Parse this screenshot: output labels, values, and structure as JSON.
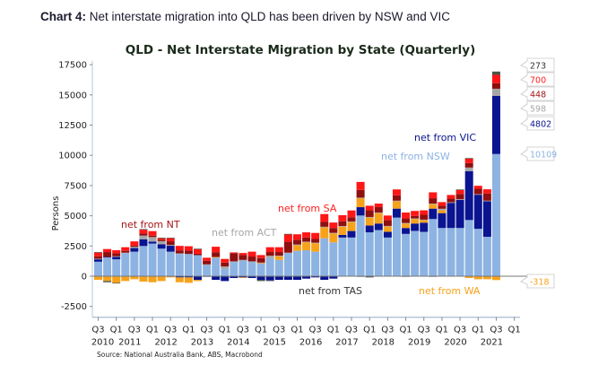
{
  "heading": {
    "prefix": "Chart 4:",
    "text": " Net interstate migration into QLD has been driven by NSW and VIC"
  },
  "source": "Source: National Australia Bank, ABS, Macrobond",
  "chart_data": {
    "type": "bar",
    "stacked": true,
    "title": "QLD - Net Interstate Migration by State (Quarterly)",
    "ylabel": "Persons",
    "xlabel": "",
    "ylim": [
      -2500,
      17500
    ],
    "yticks": [
      -2500,
      0,
      2500,
      5000,
      7500,
      10000,
      12500,
      15000,
      17500
    ],
    "grid": false,
    "categories": [
      "2010Q3",
      "2010Q4",
      "2011Q1",
      "2011Q2",
      "2011Q3",
      "2011Q4",
      "2012Q1",
      "2012Q2",
      "2012Q3",
      "2012Q4",
      "2013Q1",
      "2013Q2",
      "2013Q3",
      "2013Q4",
      "2014Q1",
      "2014Q2",
      "2014Q3",
      "2014Q4",
      "2015Q1",
      "2015Q2",
      "2015Q3",
      "2015Q4",
      "2016Q1",
      "2016Q2",
      "2016Q3",
      "2016Q4",
      "2017Q1",
      "2017Q2",
      "2017Q3",
      "2017Q4",
      "2018Q1",
      "2018Q2",
      "2018Q3",
      "2018Q4",
      "2019Q1",
      "2019Q2",
      "2019Q3",
      "2019Q4",
      "2020Q1",
      "2020Q2",
      "2020Q3",
      "2020Q4",
      "2021Q1",
      "2021Q2",
      "2021Q3"
    ],
    "xtick_labels": [
      "Q3",
      "Q1",
      "Q3",
      "Q1",
      "Q3",
      "Q1",
      "Q3",
      "Q1",
      "Q3",
      "Q1",
      "Q3",
      "Q1",
      "Q3",
      "Q1",
      "Q3",
      "Q1",
      "Q3",
      "Q1",
      "Q3",
      "Q1",
      "Q3",
      "Q1",
      "Q3",
      "Q1"
    ],
    "year_labels": [
      "2010",
      "2011",
      "2012",
      "2013",
      "2014",
      "2015",
      "2016",
      "2017",
      "2018",
      "2019",
      "2020",
      "2021"
    ],
    "series": [
      {
        "name": "net from NSW",
        "color": "#8db3e2",
        "values": [
          1200,
          1550,
          1400,
          1900,
          2030,
          2500,
          2700,
          2280,
          2030,
          1840,
          1840,
          1740,
          930,
          1540,
          610,
          1180,
          1300,
          1180,
          1050,
          1500,
          1350,
          1900,
          2100,
          2150,
          2030,
          3140,
          2800,
          3200,
          3200,
          5020,
          3630,
          3820,
          3200,
          4850,
          3500,
          3750,
          3670,
          4730,
          3990,
          3990,
          3990,
          4650,
          3920,
          3260,
          10109
        ]
      },
      {
        "name": "net from VIC",
        "color": "#0a1490",
        "values": [
          200,
          50,
          200,
          0,
          300,
          560,
          170,
          370,
          490,
          -100,
          -100,
          -300,
          -50,
          -300,
          -400,
          -150,
          -100,
          -150,
          -300,
          -350,
          -300,
          -300,
          -300,
          -200,
          -100,
          -300,
          -200,
          220,
          540,
          690,
          560,
          540,
          470,
          740,
          490,
          610,
          760,
          860,
          1230,
          2080,
          2330,
          4040,
          2820,
          2940,
          4802
        ]
      },
      {
        "name": "net from WA",
        "color": "#f7a21b",
        "values": [
          -300,
          -400,
          -550,
          -400,
          -250,
          -450,
          -500,
          -400,
          -100,
          -400,
          -450,
          -100,
          0,
          50,
          0,
          0,
          -50,
          0,
          30,
          0,
          300,
          0,
          470,
          660,
          700,
          900,
          740,
          680,
          740,
          740,
          660,
          860,
          440,
          610,
          370,
          370,
          200,
          370,
          240,
          0,
          0,
          -150,
          -250,
          -250,
          -318
        ]
      },
      {
        "name": "net from ACT",
        "color": "#a6a6a6",
        "values": [
          50,
          0,
          50,
          50,
          100,
          300,
          370,
          250,
          70,
          50,
          0,
          0,
          50,
          0,
          200,
          50,
          50,
          50,
          50,
          200,
          50,
          50,
          50,
          50,
          50,
          50,
          50,
          50,
          50,
          50,
          50,
          50,
          50,
          50,
          50,
          50,
          50,
          50,
          120,
          50,
          50,
          300,
          50,
          50,
          598
        ]
      },
      {
        "name": "net from SA",
        "color": "#8e0f0f",
        "values": [
          200,
          400,
          250,
          150,
          100,
          170,
          120,
          120,
          300,
          250,
          270,
          120,
          300,
          400,
          320,
          670,
          400,
          400,
          370,
          300,
          300,
          900,
          400,
          350,
          300,
          400,
          400,
          400,
          350,
          640,
          560,
          440,
          490,
          440,
          370,
          200,
          400,
          440,
          250,
          300,
          440,
          370,
          440,
          600,
          448
        ]
      },
      {
        "name": "net from NT",
        "color": "#ff1616",
        "values": [
          300,
          250,
          250,
          300,
          350,
          320,
          370,
          120,
          250,
          370,
          370,
          370,
          250,
          450,
          300,
          70,
          170,
          400,
          250,
          400,
          400,
          600,
          450,
          420,
          500,
          650,
          450,
          500,
          560,
          660,
          370,
          300,
          370,
          490,
          490,
          420,
          370,
          490,
          300,
          300,
          320,
          370,
          250,
          340,
          700
        ]
      },
      {
        "name": "net from TAS",
        "color": "#4a5548",
        "values": [
          50,
          -100,
          -50,
          0,
          0,
          50,
          0,
          50,
          50,
          0,
          0,
          50,
          0,
          0,
          0,
          0,
          0,
          0,
          -100,
          -50,
          0,
          50,
          0,
          0,
          0,
          0,
          0,
          0,
          0,
          -50,
          -100,
          0,
          0,
          0,
          -50,
          0,
          0,
          -50,
          0,
          0,
          50,
          50,
          0,
          0,
          273
        ]
      }
    ],
    "annotations": [
      {
        "text": "net from NT",
        "color": "#a31515"
      },
      {
        "text": "net from ACT",
        "color": "#a6a6a6"
      },
      {
        "text": "net from SA",
        "color": "#ff2020"
      },
      {
        "text": "net from TAS",
        "color": "#333333"
      },
      {
        "text": "net from WA",
        "color": "#f7a21b"
      },
      {
        "text": "net from VIC",
        "color": "#0a1490"
      },
      {
        "text": "net from NSW",
        "color": "#8db3e2"
      }
    ],
    "last_value_labels": [
      {
        "text": "273",
        "color": "#333333"
      },
      {
        "text": "700",
        "color": "#ff2020"
      },
      {
        "text": "448",
        "color": "#a31515"
      },
      {
        "text": "598",
        "color": "#a6a6a6"
      },
      {
        "text": "4802",
        "color": "#0a1490"
      },
      {
        "text": "10109",
        "color": "#8db3e2"
      },
      {
        "text": "-318",
        "color": "#f7a21b"
      }
    ]
  }
}
